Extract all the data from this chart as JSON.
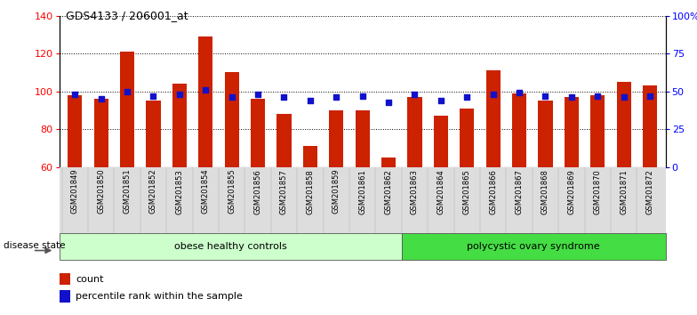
{
  "title": "GDS4133 / 206001_at",
  "samples": [
    "GSM201849",
    "GSM201850",
    "GSM201851",
    "GSM201852",
    "GSM201853",
    "GSM201854",
    "GSM201855",
    "GSM201856",
    "GSM201857",
    "GSM201858",
    "GSM201859",
    "GSM201861",
    "GSM201862",
    "GSM201863",
    "GSM201864",
    "GSM201865",
    "GSM201866",
    "GSM201867",
    "GSM201868",
    "GSM201869",
    "GSM201870",
    "GSM201871",
    "GSM201872"
  ],
  "counts": [
    98,
    96,
    121,
    95,
    104,
    129,
    110,
    96,
    88,
    71,
    90,
    90,
    65,
    97,
    87,
    91,
    111,
    99,
    95,
    97,
    98,
    105,
    103
  ],
  "percentiles": [
    48,
    45,
    50,
    47,
    48,
    51,
    46,
    48,
    46,
    44,
    46,
    47,
    43,
    48,
    44,
    46,
    48,
    49,
    47,
    46,
    47,
    46,
    47
  ],
  "bar_color": "#cc2200",
  "dot_color": "#1111cc",
  "ylim_left": [
    60,
    140
  ],
  "ylim_right": [
    0,
    100
  ],
  "yticks_left": [
    60,
    80,
    100,
    120,
    140
  ],
  "yticks_right": [
    0,
    25,
    50,
    75,
    100
  ],
  "ytick_labels_right": [
    "0",
    "25",
    "50",
    "75",
    "100%"
  ],
  "group1_label": "obese healthy controls",
  "group2_label": "polycystic ovary syndrome",
  "group1_count": 13,
  "group1_color": "#ccffcc",
  "group2_color": "#44dd44",
  "disease_state_label": "disease state",
  "legend_bar_label": "count",
  "legend_dot_label": "percentile rank within the sample",
  "xtick_bg_color": "#dddddd",
  "arrow_color": "#666666"
}
